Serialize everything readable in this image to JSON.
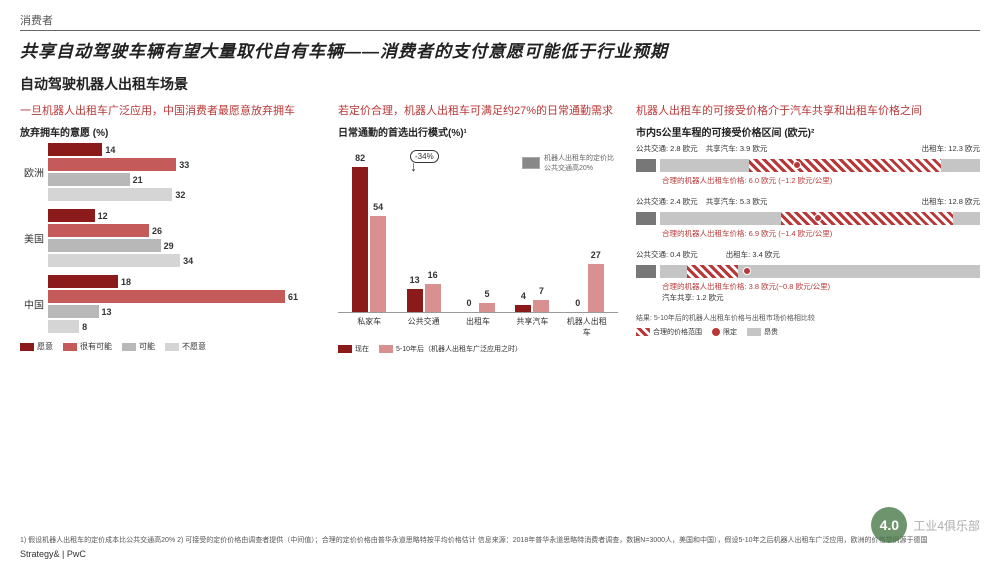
{
  "header_label": "消费者",
  "title": "共享自动驾驶车辆有望大量取代自有车辆——消费者的支付意愿可能低于行业预期",
  "subtitle": "自动驾驶机器人出租车场景",
  "colors": {
    "dark_red": "#8B1A1A",
    "red": "#C55A5A",
    "salmon": "#D89090",
    "gray": "#B8B8B8",
    "light_gray": "#D5D5D5",
    "text_red": "#B83838"
  },
  "left": {
    "desc": "一旦机器人出租车广泛应用，中国消费者最愿意放弃拥车",
    "chart_title": "放弃拥车的意愿 (%)",
    "max": 70,
    "regions": [
      {
        "name": "欧洲",
        "bars": [
          {
            "v": 14,
            "c": "#8B1A1A"
          },
          {
            "v": 33,
            "c": "#C55A5A"
          },
          {
            "v": 21,
            "c": "#B8B8B8"
          },
          {
            "v": 32,
            "c": "#D5D5D5"
          }
        ]
      },
      {
        "name": "美国",
        "bars": [
          {
            "v": 12,
            "c": "#8B1A1A"
          },
          {
            "v": 26,
            "c": "#C55A5A"
          },
          {
            "v": 29,
            "c": "#B8B8B8"
          },
          {
            "v": 34,
            "c": "#D5D5D5"
          }
        ]
      },
      {
        "name": "中国",
        "bars": [
          {
            "v": 18,
            "c": "#8B1A1A"
          },
          {
            "v": 61,
            "c": "#C55A5A"
          },
          {
            "v": 13,
            "c": "#B8B8B8"
          },
          {
            "v": 8,
            "c": "#D5D5D5"
          }
        ]
      }
    ],
    "legend": [
      {
        "label": "愿意",
        "c": "#8B1A1A"
      },
      {
        "label": "很有可能",
        "c": "#C55A5A"
      },
      {
        "label": "可能",
        "c": "#B8B8B8"
      },
      {
        "label": "不愿意",
        "c": "#D5D5D5"
      }
    ]
  },
  "mid": {
    "desc": "若定价合理，机器人出租车可满足约27%的日常通勤需求",
    "chart_title": "日常通勤的首选出行模式(%)¹",
    "max": 90,
    "change_label": "-34%",
    "note": "机器人出租车的定价比公共交通高20%",
    "cats": [
      "私家车",
      "公共交通",
      "出租车",
      "共享汽车",
      "机器人出租车"
    ],
    "series": [
      {
        "name": "现在",
        "c": "#8B1A1A",
        "vals": [
          82,
          13,
          0,
          4,
          0
        ]
      },
      {
        "name": "5-10年后（机器人出租车广泛应用之时）",
        "c": "#D89090",
        "vals": [
          54,
          16,
          5,
          7,
          27
        ]
      }
    ],
    "legend": [
      {
        "label": "现在",
        "c": "#8B1A1A"
      },
      {
        "label": "5-10年后（机器人出租车广泛应用之时）",
        "c": "#D89090"
      }
    ]
  },
  "right": {
    "desc": "机器人出租车的可接受价格介于汽车共享和出租车价格之间",
    "chart_title": "市内5公里车程的可接受价格区间 (欧元)²",
    "max": 14,
    "rows": [
      {
        "flag": "EU",
        "transit": {
          "l": "公共交通:",
          "v": 2.8
        },
        "share": {
          "l": "共享汽车:",
          "v": 3.9
        },
        "taxi": {
          "l": "出租车:",
          "v": 12.3
        },
        "sub": "合理的机器人出租车价格: 6.0 欧元 (~1.2 欧元/公里)",
        "hatch": [
          3.9,
          12.3
        ],
        "dot": 6.0
      },
      {
        "flag": "US",
        "transit": {
          "l": "公共交通:",
          "v": 2.4
        },
        "share": {
          "l": "共享汽车:",
          "v": 5.3
        },
        "taxi": {
          "l": "出租车:",
          "v": 12.8
        },
        "sub": "合理的机器人出租车价格: 6.9 欧元 (~1.4 欧元/公里)",
        "hatch": [
          5.3,
          12.8
        ],
        "dot": 6.9
      },
      {
        "flag": "CN",
        "transit": {
          "l": "公共交通:",
          "v": 0.4
        },
        "share": {
          "l": "汽车共享:",
          "v": 1.2
        },
        "taxi": {
          "l": "出租车:",
          "v": 3.4
        },
        "sub": "合理的机器人出租车价格: 3.8 欧元(~0.8 欧元/公里)",
        "hatch": [
          1.2,
          3.4
        ],
        "dot": 3.8,
        "alt_layout": true
      }
    ],
    "note": "结果: 5-10年后的机器人出租车价格与出租市场价格相比较",
    "legend": [
      {
        "label": "合理的价格范围",
        "type": "hatch"
      },
      {
        "label": "限定",
        "type": "dot"
      },
      {
        "label": "昂贵",
        "type": "gray"
      }
    ]
  },
  "footnote": "1) 假设机器人出租车的定价成本比公共交通高20% 2) 可接受的定价价格由调查者提供（中间值）；合理的定价价格由普华永道思略特按平均价格估计\n信息来源：2018年普华永道思略特消费者调查，数据N=3000人，美国和中国），假设5-10年之后机器人出租车广泛应用，欧洲的价格举例源于德国",
  "brand": "Strategy& | PwC",
  "watermark": "工业4俱乐部"
}
